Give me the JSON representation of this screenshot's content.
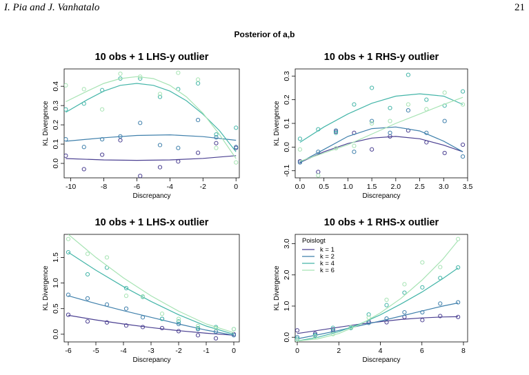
{
  "header": {
    "authors": "I. Pia and J. Vanhatalo",
    "page_number": "21"
  },
  "figure": {
    "title": "Posterior of a,b"
  },
  "colors": {
    "k1": "#4a3f91",
    "k2": "#3e7fab",
    "k4": "#43b5a8",
    "k6": "#a6e3b3"
  },
  "legend": {
    "title": "Poislogt",
    "entries": [
      {
        "label": "k = 1",
        "color": "#4a3f91"
      },
      {
        "label": "k = 2",
        "color": "#3e7fab"
      },
      {
        "label": "k = 4",
        "color": "#43b5a8"
      },
      {
        "label": "k = 6",
        "color": "#a6e3b3"
      }
    ],
    "placement": "top-left of bottom-right panel"
  },
  "chart_data": [
    {
      "type": "scatter",
      "title": "10 obs + 1 LHS-y outlier",
      "xlabel": "Discrepancy",
      "ylabel": "KL Divergence",
      "xlim": [
        -10.4,
        0.2
      ],
      "ylim": [
        -0.075,
        0.49
      ],
      "xticks": [
        -10,
        -8,
        -6,
        -4,
        -2,
        0
      ],
      "yticks": [
        0.0,
        0.1,
        0.2,
        0.3,
        0.4
      ],
      "xtick_labels": [
        "-10",
        "-8",
        "-6",
        "-4",
        "-2",
        "0"
      ],
      "ytick_labels": [
        "0.0",
        "0.1",
        "0.2",
        "0.3",
        "0.4"
      ],
      "series": [
        {
          "name": "k = 1",
          "color": "#4a3f91",
          "x": [
            -10.3,
            -9.2,
            -8.1,
            -7.0,
            -5.8,
            -4.6,
            -3.5,
            -2.3,
            -1.2,
            0.0
          ],
          "y": [
            0.04,
            -0.03,
            0.045,
            0.12,
            -0.065,
            -0.02,
            0.01,
            0.055,
            0.105,
            0.08
          ],
          "fit_x": [
            -10.3,
            -8,
            -6,
            -4,
            -2,
            0
          ],
          "fit_y": [
            0.025,
            0.018,
            0.016,
            0.018,
            0.026,
            0.04
          ]
        },
        {
          "name": "k = 2",
          "color": "#3e7fab",
          "x": [
            -10.3,
            -9.2,
            -8.1,
            -7.0,
            -5.8,
            -4.6,
            -3.5,
            -2.3,
            -1.2,
            0.0
          ],
          "y": [
            0.125,
            0.085,
            0.125,
            0.14,
            0.21,
            0.095,
            0.08,
            0.225,
            0.135,
            0.085
          ],
          "fit_x": [
            -10.3,
            -8,
            -6,
            -4,
            -2,
            0
          ],
          "fit_y": [
            0.115,
            0.133,
            0.145,
            0.148,
            0.139,
            0.12
          ]
        },
        {
          "name": "k = 4",
          "color": "#43b5a8",
          "x": [
            -10.3,
            -9.2,
            -8.1,
            -7.0,
            -5.8,
            -4.6,
            -3.5,
            -2.3,
            -1.2,
            0.0
          ],
          "y": [
            0.28,
            0.31,
            0.38,
            0.44,
            0.44,
            0.345,
            0.385,
            0.415,
            0.15,
            0.185
          ],
          "fit_x": [
            -10.3,
            -9,
            -8,
            -7,
            -6,
            -5,
            -4,
            -3,
            -2,
            -1,
            0
          ],
          "fit_y": [
            0.265,
            0.33,
            0.375,
            0.405,
            0.415,
            0.405,
            0.375,
            0.325,
            0.255,
            0.17,
            0.06
          ]
        },
        {
          "name": "k = 6",
          "color": "#a6e3b3",
          "x": [
            -10.3,
            -9.2,
            -8.1,
            -7.0,
            -5.8,
            -4.6,
            -3.5,
            -2.3,
            -1.2,
            0.0
          ],
          "y": [
            0.405,
            0.385,
            0.28,
            0.465,
            0.45,
            0.36,
            0.47,
            0.435,
            0.08,
            0.005
          ],
          "fit_x": [
            -10.3,
            -9,
            -8,
            -7,
            -6,
            -5,
            -4,
            -3,
            -2,
            -1,
            0
          ],
          "fit_y": [
            0.32,
            0.375,
            0.415,
            0.44,
            0.45,
            0.44,
            0.405,
            0.345,
            0.26,
            0.15,
            0.025
          ]
        }
      ]
    },
    {
      "type": "scatter",
      "title": "10 obs + 1 RHS-y outlier",
      "xlabel": "Discrepancy",
      "ylabel": "KL Divergence",
      "xlim": [
        -0.1,
        3.5
      ],
      "ylim": [
        -0.13,
        0.33
      ],
      "xticks": [
        0.0,
        0.5,
        1.0,
        1.5,
        2.0,
        2.5,
        3.0,
        3.5
      ],
      "yticks": [
        -0.1,
        0.0,
        0.1,
        0.2,
        0.3
      ],
      "xtick_labels": [
        "0.0",
        "0.5",
        "1.0",
        "1.5",
        "2.0",
        "2.5",
        "3.0",
        "3.5"
      ],
      "ytick_labels": [
        "-0.1",
        "0.0",
        "0.1",
        "0.2",
        "0.3"
      ],
      "series": [
        {
          "name": "k = 1",
          "color": "#4a3f91",
          "x": [
            0.0,
            0.38,
            0.75,
            1.13,
            1.5,
            1.88,
            2.26,
            2.64,
            3.02,
            3.4
          ],
          "y": [
            -0.06,
            -0.105,
            0.065,
            0.06,
            -0.01,
            0.045,
            0.07,
            0.02,
            -0.025,
            0.01
          ],
          "fit_x": [
            0.0,
            0.5,
            1.0,
            1.5,
            2.0,
            2.5,
            3.0,
            3.4
          ],
          "fit_y": [
            -0.065,
            -0.02,
            0.015,
            0.038,
            0.045,
            0.035,
            0.008,
            -0.02
          ]
        },
        {
          "name": "k = 2",
          "color": "#3e7fab",
          "x": [
            0.0,
            0.38,
            0.75,
            1.13,
            1.5,
            1.88,
            2.26,
            2.64,
            3.02,
            3.4
          ],
          "y": [
            -0.065,
            -0.02,
            0.07,
            -0.02,
            0.11,
            0.06,
            0.155,
            0.06,
            0.11,
            -0.04
          ],
          "fit_x": [
            0.0,
            0.5,
            1.0,
            1.5,
            2.0,
            2.5,
            3.0,
            3.4
          ],
          "fit_y": [
            -0.065,
            -0.01,
            0.045,
            0.078,
            0.085,
            0.068,
            0.025,
            -0.02
          ]
        },
        {
          "name": "k = 4",
          "color": "#43b5a8",
          "x": [
            0.0,
            0.38,
            0.75,
            1.13,
            1.5,
            1.88,
            2.26,
            2.64,
            3.02,
            3.4
          ],
          "y": [
            0.035,
            0.075,
            0.06,
            0.18,
            0.25,
            0.165,
            0.305,
            0.2,
            0.175,
            0.235
          ],
          "fit_x": [
            0.0,
            0.5,
            1.0,
            1.5,
            2.0,
            2.5,
            3.0,
            3.4
          ],
          "fit_y": [
            0.02,
            0.085,
            0.14,
            0.185,
            0.215,
            0.225,
            0.215,
            0.18
          ]
        },
        {
          "name": "k = 6",
          "color": "#a6e3b3",
          "x": [
            0.0,
            0.38,
            0.75,
            1.13,
            1.5,
            1.88,
            2.26,
            2.64,
            3.02,
            3.4
          ],
          "y": [
            -0.01,
            -0.12,
            -0.005,
            0.005,
            0.1,
            0.11,
            0.18,
            0.16,
            0.23,
            0.18
          ],
          "fit_x": [
            0.0,
            0.5,
            1.0,
            1.5,
            2.0,
            2.5,
            3.0,
            3.4
          ],
          "fit_y": [
            -0.06,
            -0.025,
            0.01,
            0.055,
            0.1,
            0.14,
            0.18,
            0.21
          ]
        }
      ]
    },
    {
      "type": "scatter",
      "title": "10 obs + 1 LHS-x outlier",
      "xlabel": "Discrepancy",
      "ylabel": "KL Divergence",
      "xlim": [
        -6.15,
        0.2
      ],
      "ylim": [
        -0.15,
        1.95
      ],
      "xticks": [
        -6,
        -5,
        -4,
        -3,
        -2,
        -1,
        0
      ],
      "yticks": [
        0.0,
        0.5,
        1.0,
        1.5
      ],
      "xtick_labels": [
        "-6",
        "-5",
        "-4",
        "-3",
        "-2",
        "-1",
        "0"
      ],
      "ytick_labels": [
        "0.0",
        "0.5",
        "1.0",
        "1.5"
      ],
      "series": [
        {
          "name": "k = 1",
          "color": "#4a3f91",
          "x": [
            -6.0,
            -5.3,
            -4.6,
            -3.9,
            -3.3,
            -2.6,
            -2.0,
            -1.3,
            -0.65,
            0.0
          ],
          "y": [
            0.38,
            0.25,
            0.23,
            0.17,
            0.14,
            0.12,
            0.06,
            -0.02,
            -0.08,
            0.0
          ],
          "fit_x": [
            -6,
            -5,
            -4,
            -3,
            -2,
            -1,
            0
          ],
          "fit_y": [
            0.37,
            0.28,
            0.2,
            0.13,
            0.07,
            0.02,
            -0.02
          ]
        },
        {
          "name": "k = 2",
          "color": "#3e7fab",
          "x": [
            -6.0,
            -5.3,
            -4.6,
            -3.9,
            -3.3,
            -2.6,
            -2.0,
            -1.3,
            -0.65,
            0.0
          ],
          "y": [
            0.77,
            0.7,
            0.58,
            0.5,
            0.33,
            0.3,
            0.2,
            0.1,
            0.05,
            -0.02
          ],
          "fit_x": [
            -6,
            -5,
            -4,
            -3,
            -2,
            -1,
            0
          ],
          "fit_y": [
            0.75,
            0.6,
            0.46,
            0.33,
            0.2,
            0.08,
            -0.02
          ]
        },
        {
          "name": "k = 4",
          "color": "#43b5a8",
          "x": [
            -6.0,
            -5.3,
            -4.6,
            -3.9,
            -3.3,
            -2.6,
            -2.0,
            -1.3,
            -0.65,
            0.0
          ],
          "y": [
            1.6,
            1.17,
            1.3,
            0.9,
            0.73,
            0.3,
            0.25,
            0.12,
            0.14,
            0.1
          ],
          "fit_x": [
            -6,
            -5,
            -4,
            -3,
            -2,
            -1,
            0
          ],
          "fit_y": [
            1.6,
            1.25,
            0.93,
            0.64,
            0.38,
            0.16,
            0.0
          ]
        },
        {
          "name": "k = 6",
          "color": "#a6e3b3",
          "x": [
            -6.0,
            -5.3,
            -4.6,
            -3.9,
            -3.3,
            -2.6,
            -2.0,
            -1.3,
            -0.65,
            0.0
          ],
          "y": [
            1.86,
            1.57,
            1.5,
            0.75,
            0.74,
            0.4,
            0.3,
            0.16,
            0.12,
            0.1
          ],
          "fit_x": [
            -6,
            -5,
            -4,
            -3,
            -2,
            -1,
            0
          ],
          "fit_y": [
            1.95,
            1.5,
            1.1,
            0.75,
            0.45,
            0.2,
            0.03
          ]
        }
      ]
    },
    {
      "type": "scatter",
      "title": "10 obs + 1 RHS-x outlier",
      "xlabel": "Discrepancy",
      "ylabel": "KL Divergence",
      "xlim": [
        -0.1,
        8.2
      ],
      "ylim": [
        -0.15,
        3.3
      ],
      "xticks": [
        0,
        2,
        4,
        6,
        8
      ],
      "yticks": [
        0.0,
        1.0,
        2.0,
        3.0
      ],
      "xtick_labels": [
        "0",
        "2",
        "4",
        "6",
        "8"
      ],
      "ytick_labels": [
        "0.0",
        "1.0",
        "2.0",
        "3.0"
      ],
      "series": [
        {
          "name": "k = 1",
          "color": "#4a3f91",
          "x": [
            0.0,
            0.86,
            1.72,
            2.58,
            3.44,
            4.3,
            5.16,
            6.02,
            6.88,
            7.74
          ],
          "y": [
            0.22,
            0.12,
            0.25,
            0.3,
            0.5,
            0.48,
            0.65,
            0.55,
            0.68,
            0.65
          ],
          "fit_x": [
            0,
            1,
            2,
            3,
            4,
            5,
            6,
            7,
            7.74
          ],
          "fit_y": [
            0.12,
            0.22,
            0.32,
            0.42,
            0.5,
            0.57,
            0.62,
            0.65,
            0.66
          ]
        },
        {
          "name": "k = 2",
          "color": "#3e7fab",
          "x": [
            0.0,
            0.86,
            1.72,
            2.58,
            3.44,
            4.3,
            5.16,
            6.02,
            6.88,
            7.74
          ],
          "y": [
            0.0,
            0.08,
            0.18,
            0.3,
            0.46,
            0.6,
            0.8,
            0.8,
            1.08,
            1.12
          ],
          "fit_x": [
            0,
            1,
            2,
            3,
            4,
            5,
            6,
            7,
            7.74
          ],
          "fit_y": [
            -0.05,
            0.08,
            0.22,
            0.37,
            0.52,
            0.68,
            0.84,
            1.0,
            1.1
          ]
        },
        {
          "name": "k = 4",
          "color": "#43b5a8",
          "x": [
            0.0,
            0.86,
            1.72,
            2.58,
            3.44,
            4.3,
            5.16,
            6.02,
            6.88,
            7.74
          ],
          "y": [
            -0.05,
            0.05,
            0.3,
            0.3,
            0.73,
            1.03,
            1.43,
            1.6,
            1.9,
            2.24
          ],
          "fit_x": [
            0,
            1,
            2,
            3,
            4,
            5,
            6,
            7,
            7.74
          ],
          "fit_y": [
            -0.12,
            0.0,
            0.18,
            0.42,
            0.72,
            1.07,
            1.45,
            1.88,
            2.22
          ]
        },
        {
          "name": "k = 6",
          "color": "#a6e3b3",
          "x": [
            0.0,
            0.86,
            1.72,
            2.58,
            3.44,
            4.3,
            5.16,
            6.02,
            6.88,
            7.74
          ],
          "y": [
            -0.1,
            0.02,
            0.1,
            0.32,
            0.63,
            1.2,
            1.7,
            2.4,
            2.25,
            3.15
          ],
          "fit_x": [
            0,
            1,
            2,
            3,
            4,
            5,
            6,
            7,
            7.74
          ],
          "fit_y": [
            -0.12,
            -0.05,
            0.12,
            0.4,
            0.78,
            1.25,
            1.83,
            2.5,
            3.1
          ]
        }
      ]
    }
  ]
}
